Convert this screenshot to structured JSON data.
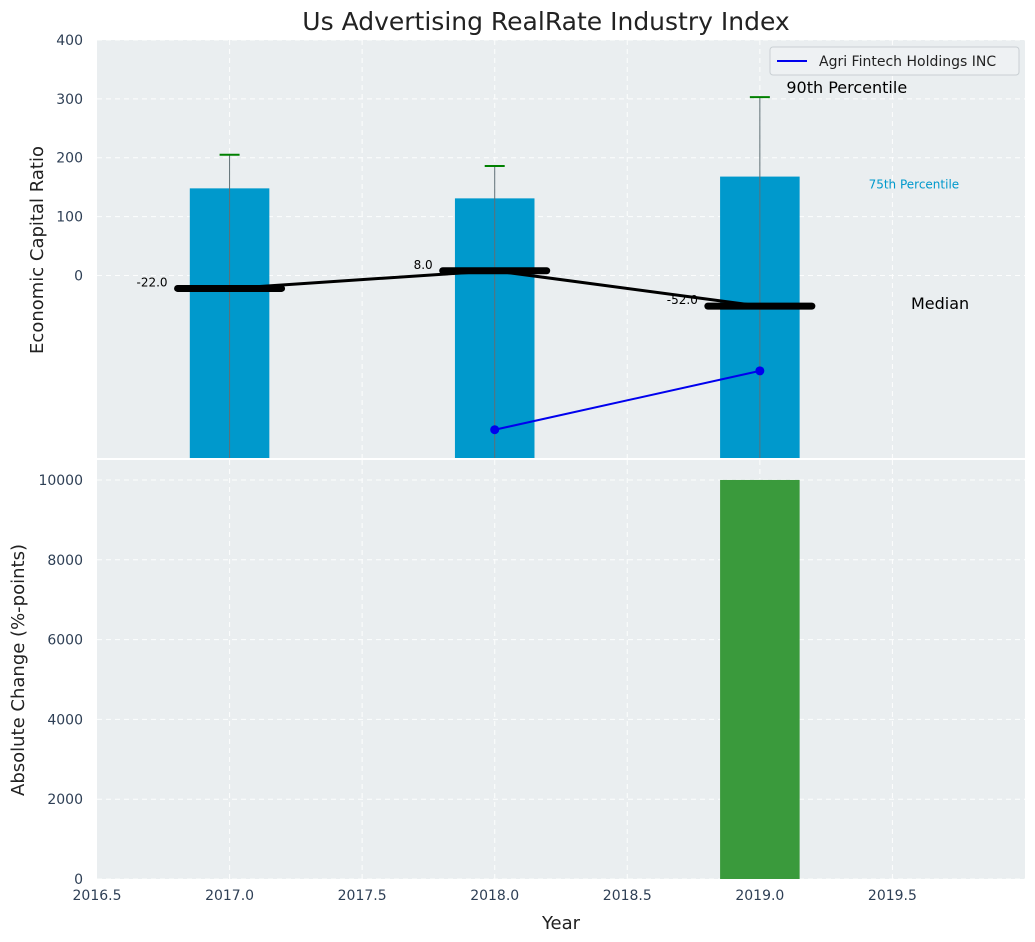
{
  "title": "Us Advertising RealRate Industry Index",
  "chart_data": [
    {
      "type": "bar",
      "panel": "top",
      "ylabel": "Economic Capital Ratio",
      "ylim": [
        -310,
        400
      ],
      "xlim": [
        2016.5,
        2020.0
      ],
      "yticks": [
        "400",
        "300",
        "200",
        "100",
        "0"
      ],
      "ytick_values": [
        400,
        300,
        200,
        100,
        0
      ],
      "grid": true,
      "legend": {
        "position": "top-right",
        "entries": [
          {
            "name": "Agri Fintech Holdings INC",
            "color": "#0000ee"
          }
        ]
      },
      "percentile_75_bars": {
        "x": [
          2017,
          2018,
          2019
        ],
        "values": [
          148,
          131,
          168
        ],
        "color": "#0099cc"
      },
      "percentile_90_whiskers": {
        "x": [
          2017,
          2018,
          2019
        ],
        "values": [
          205,
          186,
          303
        ],
        "bottom": -310,
        "color": "#008000"
      },
      "median": {
        "x": [
          2017,
          2018,
          2019
        ],
        "values": [
          -22,
          8,
          -52
        ],
        "labels": [
          "-22.0",
          "8.0",
          "-52.0"
        ],
        "color": "#000000"
      },
      "company_series": {
        "name": "Agri Fintech Holdings INC",
        "x": [
          2018,
          2019
        ],
        "values": [
          -262,
          -162
        ],
        "color": "#0000ee"
      },
      "annotations": {
        "p90": "90th Percentile",
        "p75": "75th Percentile",
        "median": "Median"
      }
    },
    {
      "type": "bar",
      "panel": "bottom",
      "xlabel": "Year",
      "ylabel": "Absolute Change (%-points)",
      "ylim": [
        0,
        10500
      ],
      "xlim": [
        2016.5,
        2020.0
      ],
      "yticks": [
        "10000",
        "8000",
        "6000",
        "4000",
        "2000",
        "0"
      ],
      "ytick_values": [
        10000,
        8000,
        6000,
        4000,
        2000,
        0
      ],
      "xticks": [
        "2016.5",
        "2017.0",
        "2017.5",
        "2018.0",
        "2018.5",
        "2019.0",
        "2019.5"
      ],
      "xtick_values": [
        2016.5,
        2017.0,
        2017.5,
        2018.0,
        2018.5,
        2019.0,
        2019.5
      ],
      "grid": true,
      "bars": {
        "x": [
          2019
        ],
        "values": [
          10000
        ],
        "color": "#3a9a3c"
      }
    }
  ],
  "colors": {
    "panel_bg": "#eaeef0",
    "bar_blue": "#0099cc",
    "bar_green": "#3a9a3c",
    "whisker": "#008000",
    "company": "#0000ee"
  }
}
